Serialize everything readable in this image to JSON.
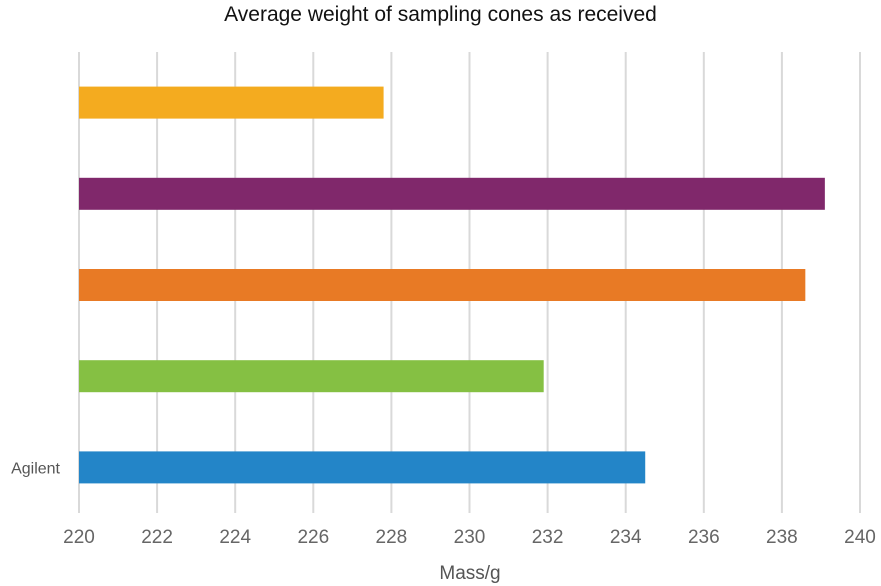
{
  "chart_data": {
    "type": "bar",
    "orientation": "horizontal",
    "title": "Average weight of sampling cones as received",
    "xlabel": "Mass/g",
    "ylabel": "",
    "xlim": [
      220,
      240
    ],
    "xticks": [
      220,
      222,
      224,
      226,
      228,
      230,
      232,
      234,
      236,
      238,
      240
    ],
    "grid": true,
    "legend": "none",
    "bars": [
      {
        "label": "",
        "value": 227.8,
        "color": "#F4AB1F"
      },
      {
        "label": "",
        "value": 239.1,
        "color": "#80286B"
      },
      {
        "label": "",
        "value": 238.6,
        "color": "#E87A25"
      },
      {
        "label": "",
        "value": 231.9,
        "color": "#85C043"
      },
      {
        "label": "Agilent",
        "value": 234.5,
        "color": "#2385C8"
      }
    ]
  }
}
